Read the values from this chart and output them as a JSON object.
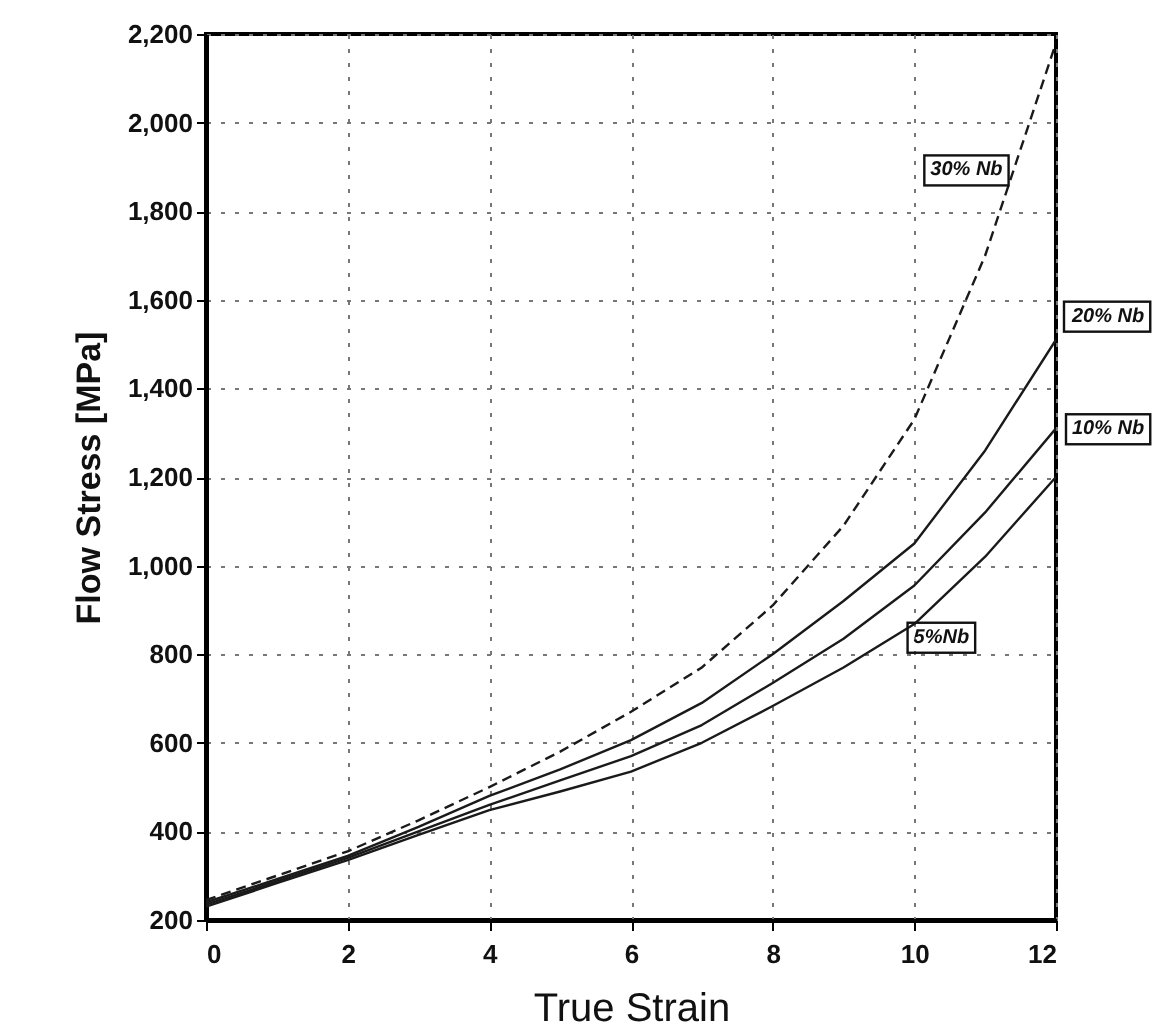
{
  "chart_data": {
    "type": "line",
    "xlabel": "True Strain",
    "ylabel": "Flow Stress [MPa]",
    "x": [
      0,
      1,
      2,
      3,
      4,
      5,
      6,
      7,
      8,
      9,
      10,
      11,
      12
    ],
    "xlim": [
      0,
      12
    ],
    "xticks": [
      0,
      2,
      4,
      6,
      8,
      10,
      12
    ],
    "ylim": [
      200,
      2200
    ],
    "yticks": [
      {
        "value": 200,
        "label": "200"
      },
      {
        "value": 400,
        "label": "400"
      },
      {
        "value": 600,
        "label": "600"
      },
      {
        "value": 800,
        "label": "800"
      },
      {
        "value": 1000,
        "label": "1,000"
      },
      {
        "value": 1200,
        "label": "1,200"
      },
      {
        "value": 1400,
        "label": "1,400"
      },
      {
        "value": 1600,
        "label": "1,600"
      },
      {
        "value": 1800,
        "label": "1,800"
      },
      {
        "value": 2000,
        "label": "2,000"
      },
      {
        "value": 2200,
        "label": "2,200"
      }
    ],
    "grid": true,
    "marker": "none",
    "series": [
      {
        "name": "30% Nb",
        "color": "#1a1a1a",
        "line_style": "dashed",
        "values": [
          245,
          300,
          355,
          425,
          500,
          580,
          670,
          770,
          910,
          1090,
          1330,
          1700,
          2180
        ]
      },
      {
        "name": "20% Nb",
        "color": "#1a1a1a",
        "line_style": "solid",
        "values": [
          240,
          292,
          345,
          410,
          480,
          540,
          606,
          690,
          800,
          920,
          1050,
          1260,
          1510
        ]
      },
      {
        "name": "10% Nb",
        "color": "#1a1a1a",
        "line_style": "solid",
        "values": [
          235,
          287,
          340,
          400,
          460,
          515,
          570,
          640,
          735,
          835,
          955,
          1120,
          1310
        ]
      },
      {
        "name": "5%Nb",
        "color": "#1a1a1a",
        "line_style": "solid",
        "values": [
          230,
          283,
          335,
          392,
          448,
          490,
          535,
          600,
          683,
          770,
          868,
          1020,
          1200
        ]
      }
    ]
  }
}
